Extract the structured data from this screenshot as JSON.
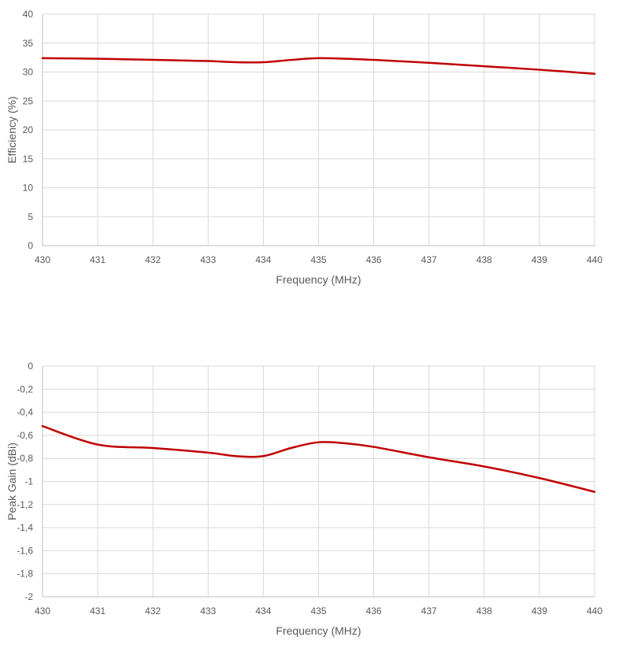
{
  "chart_data": [
    {
      "type": "line",
      "xlabel": "Frequency (MHz)",
      "ylabel": "Efficiency (%)",
      "xlim": [
        430,
        440
      ],
      "ylim": [
        0,
        40
      ],
      "x_ticks": [
        "430",
        "431",
        "432",
        "433",
        "434",
        "435",
        "436",
        "437",
        "438",
        "439",
        "440"
      ],
      "y_ticks": [
        "0",
        "5",
        "10",
        "15",
        "20",
        "25",
        "30",
        "35",
        "40"
      ],
      "grid": true,
      "line_color": "#c00000",
      "series": [
        {
          "x": [
            430,
            431,
            432,
            433,
            433.5,
            434,
            434.5,
            435,
            435.5,
            436,
            437,
            438,
            439,
            440
          ],
          "values": [
            32.4,
            32.3,
            32.1,
            31.9,
            31.7,
            31.7,
            32.1,
            32.4,
            32.3,
            32.1,
            31.6,
            31.0,
            30.4,
            29.7
          ]
        }
      ]
    },
    {
      "type": "line",
      "xlabel": "Frequency (MHz)",
      "ylabel": "Peak Gain (dBi)",
      "xlim": [
        430,
        440
      ],
      "ylim": [
        -2,
        0
      ],
      "x_ticks": [
        "430",
        "431",
        "432",
        "433",
        "434",
        "435",
        "436",
        "437",
        "438",
        "439",
        "440"
      ],
      "y_ticks": [
        "-2",
        "-1,8",
        "-1,6",
        "-1,4",
        "-1,2",
        "-1",
        "-0,8",
        "-0,6",
        "-0,4",
        "-0,2",
        "0"
      ],
      "grid": true,
      "line_color": "#c00000",
      "series": [
        {
          "x": [
            430,
            431,
            432,
            433,
            433.5,
            434,
            434.5,
            435,
            435.5,
            436,
            437,
            438,
            439,
            440
          ],
          "values": [
            -0.52,
            -0.68,
            -0.71,
            -0.75,
            -0.78,
            -0.78,
            -0.71,
            -0.66,
            -0.67,
            -0.7,
            -0.79,
            -0.87,
            -0.97,
            -1.09
          ]
        }
      ]
    }
  ]
}
